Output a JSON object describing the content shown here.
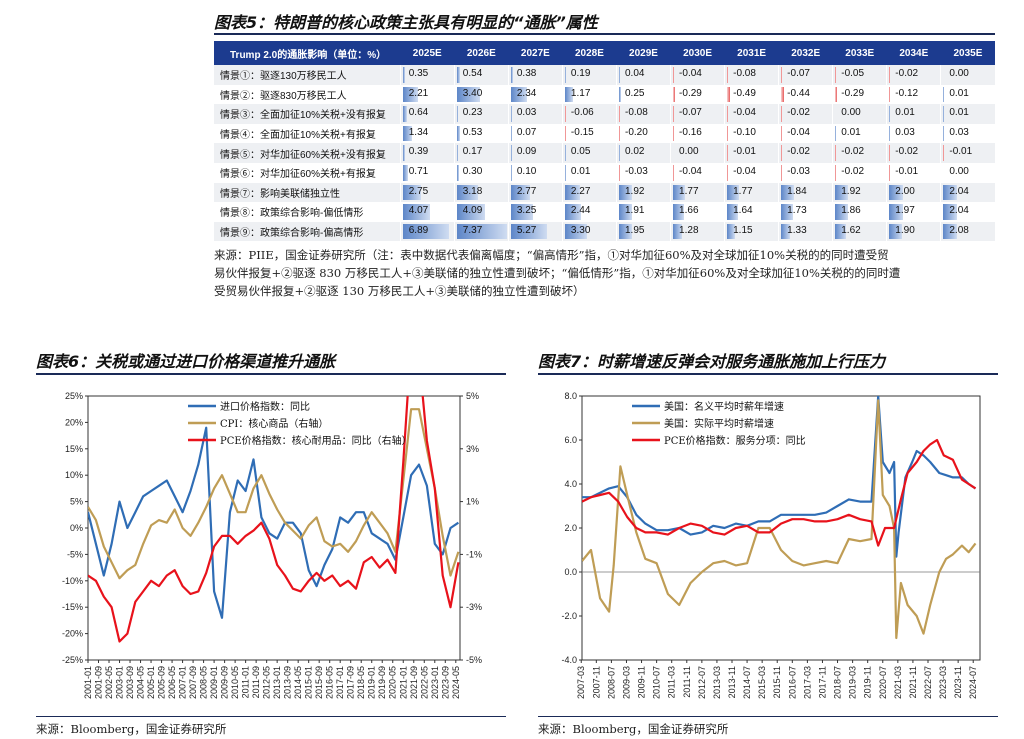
{
  "fig5": {
    "title": "图表5：特朗普的核心政策主张具有明显的“通胀”属性",
    "header": [
      "Trump 2.0的通胀影响（单位：%）",
      "2025E",
      "2026E",
      "2027E",
      "2028E",
      "2029E",
      "2030E",
      "2031E",
      "2032E",
      "2033E",
      "2034E",
      "2035E"
    ],
    "rows": [
      {
        "label": "情景①：驱逐130万移民工人",
        "values": [
          "0.35",
          "0.54",
          "0.38",
          "0.19",
          "0.04",
          "-0.04",
          "-0.08",
          "-0.07",
          "-0.05",
          "-0.02",
          "0.00"
        ]
      },
      {
        "label": "情景②：驱逐830万移民工人",
        "values": [
          "2.21",
          "3.40",
          "2.34",
          "1.17",
          "0.25",
          "-0.29",
          "-0.49",
          "-0.44",
          "-0.29",
          "-0.12",
          "0.01"
        ]
      },
      {
        "label": "情景③：全面加征10%关税+没有报复",
        "values": [
          "0.64",
          "0.23",
          "0.03",
          "-0.06",
          "-0.08",
          "-0.07",
          "-0.04",
          "-0.02",
          "0.00",
          "0.01",
          "0.01"
        ]
      },
      {
        "label": "情景④：全面加征10%关税+有报复",
        "values": [
          "1.34",
          "0.53",
          "0.07",
          "-0.15",
          "-0.20",
          "-0.16",
          "-0.10",
          "-0.04",
          "0.01",
          "0.03",
          "0.03"
        ]
      },
      {
        "label": "情景⑤：对华加征60%关税+没有报复",
        "values": [
          "0.39",
          "0.17",
          "0.09",
          "0.05",
          "0.02",
          "0.00",
          "-0.01",
          "-0.02",
          "-0.02",
          "-0.02",
          "-0.01"
        ]
      },
      {
        "label": "情景⑥：对华加征60%关税+有报复",
        "values": [
          "0.71",
          "0.30",
          "0.10",
          "0.01",
          "-0.03",
          "-0.04",
          "-0.04",
          "-0.03",
          "-0.02",
          "-0.01",
          "0.00"
        ]
      },
      {
        "label": "情景⑦：影响美联储独立性",
        "values": [
          "2.75",
          "3.18",
          "2.77",
          "2.27",
          "1.92",
          "1.77",
          "1.77",
          "1.84",
          "1.92",
          "2.00",
          "2.04"
        ]
      },
      {
        "label": "情景⑧：政策综合影响-偏低情形",
        "values": [
          "4.07",
          "4.09",
          "3.25",
          "2.44",
          "1.91",
          "1.66",
          "1.64",
          "1.73",
          "1.86",
          "1.97",
          "2.04"
        ]
      },
      {
        "label": "情景⑨：政策综合影响-偏高情形",
        "values": [
          "6.89",
          "7.37",
          "5.27",
          "3.30",
          "1.95",
          "1.28",
          "1.15",
          "1.33",
          "1.62",
          "1.90",
          "2.08"
        ]
      }
    ],
    "source_lines": [
      "来源：PIIE，国金证券研究所（注：表中数据代表偏离幅度；“偏高情形”指，①对华加征60%及对全球加征10%关税的的同时遭受贸",
      "易伙伴报复+②驱逐 830 万移民工人+③美联储的独立性遭到破坏；“偏低情形”指，①对华加征60%及对全球加征10%关税的的同时遭",
      "受贸易伙伴报复+②驱逐 130 万移民工人+③美联储的独立性遭到破坏）"
    ]
  },
  "fig6": {
    "title": "图表6：关税或通过进口价格渠道推升通胀",
    "source": "来源：Bloomberg，国金证券研究所"
  },
  "fig7": {
    "title": "图表7：时薪增速反弹会对服务通胀施加上行压力",
    "source": "来源：Bloomberg，国金证券研究所"
  },
  "chart_data": [
    {
      "type": "line",
      "xlabel": "",
      "ylabel": "",
      "x_ticks": [
        "2001-01",
        "2001-09",
        "2002-05",
        "2003-01",
        "2003-09",
        "2004-05",
        "2005-01",
        "2005-09",
        "2006-05",
        "2007-01",
        "2007-09",
        "2008-05",
        "2009-01",
        "2009-09",
        "2010-05",
        "2011-01",
        "2011-09",
        "2012-05",
        "2013-01",
        "2013-09",
        "2014-05",
        "2015-01",
        "2015-09",
        "2016-05",
        "2017-01",
        "2017-09",
        "2018-05",
        "2019-01",
        "2019-09",
        "2020-05",
        "2021-01",
        "2021-09",
        "2022-05",
        "2023-01",
        "2023-09",
        "2024-05"
      ],
      "y_left_ticks": [
        "25%",
        "20%",
        "15%",
        "10%",
        "5%",
        "0%",
        "-5%",
        "-10%",
        "-15%",
        "-20%",
        "-25%"
      ],
      "y_right_ticks": [
        "5%",
        "3%",
        "1%",
        "-1%",
        "-3%",
        "-5%"
      ],
      "ylim_left": [
        -25,
        25
      ],
      "ylim_right": [
        -5,
        5
      ],
      "legend_position": "top-left",
      "series": [
        {
          "name": "进口价格指数：同比",
          "axis": "left",
          "color": "#2f6db5",
          "x": [
            2001.0,
            2001.5,
            2002.0,
            2002.5,
            2003.0,
            2003.5,
            2004.0,
            2004.5,
            2005.0,
            2005.5,
            2006.0,
            2006.5,
            2007.0,
            2007.5,
            2008.0,
            2008.5,
            2009.0,
            2009.5,
            2010.0,
            2010.5,
            2011.0,
            2011.5,
            2012.0,
            2012.5,
            2013.0,
            2013.5,
            2014.0,
            2014.5,
            2015.0,
            2015.5,
            2016.0,
            2016.5,
            2017.0,
            2017.5,
            2018.0,
            2018.5,
            2019.0,
            2019.5,
            2020.0,
            2020.5,
            2021.0,
            2021.5,
            2022.0,
            2022.5,
            2023.0,
            2023.5,
            2024.0,
            2024.5
          ],
          "y": [
            3,
            -3,
            -9,
            -3,
            5,
            0,
            3,
            6,
            7,
            8,
            9,
            6,
            3,
            7,
            12,
            19,
            -12,
            -17,
            3,
            9,
            7,
            13,
            2,
            -1,
            -2,
            1,
            1,
            -1,
            -8,
            -11,
            -7,
            -4,
            2,
            1,
            3,
            3,
            -1,
            -2,
            -3,
            -6,
            2,
            10,
            12,
            8,
            -3,
            -5,
            0,
            1
          ]
        },
        {
          "name": "CPI：核心商品（右轴）",
          "axis": "right",
          "color": "#bf9d55",
          "x": [
            2001.0,
            2001.5,
            2002.0,
            2002.5,
            2003.0,
            2003.5,
            2004.0,
            2004.5,
            2005.0,
            2005.5,
            2006.0,
            2006.5,
            2007.0,
            2007.5,
            2008.0,
            2008.5,
            2009.0,
            2009.5,
            2010.0,
            2010.5,
            2011.0,
            2011.5,
            2012.0,
            2012.5,
            2013.0,
            2013.5,
            2014.0,
            2014.5,
            2015.0,
            2015.5,
            2016.0,
            2016.5,
            2017.0,
            2017.5,
            2018.0,
            2018.5,
            2019.0,
            2019.5,
            2020.0,
            2020.5,
            2021.0,
            2021.5,
            2022.0,
            2022.5,
            2023.0,
            2023.5,
            2024.0,
            2024.5
          ],
          "y": [
            0.8,
            0.3,
            -0.7,
            -1.3,
            -1.9,
            -1.6,
            -1.4,
            -0.6,
            0.1,
            0.3,
            0.2,
            0.7,
            0.0,
            -0.3,
            0.2,
            0.8,
            1.5,
            2.0,
            1.3,
            0.6,
            0.6,
            1.5,
            2.0,
            1.3,
            0.7,
            0.2,
            -0.1,
            -0.4,
            0.1,
            0.4,
            -0.5,
            -0.7,
            -0.6,
            -0.9,
            -0.5,
            0.1,
            0.6,
            0.2,
            -0.2,
            -0.9,
            1.8,
            4.5,
            4.5,
            3.0,
            1.5,
            -0.3,
            -1.8,
            -0.9
          ]
        },
        {
          "name": "PCE价格指数：核心耐用品：同比（右轴）",
          "axis": "right",
          "color": "#e8121b",
          "x": [
            2001.0,
            2001.5,
            2002.0,
            2002.5,
            2003.0,
            2003.5,
            2004.0,
            2004.5,
            2005.0,
            2005.5,
            2006.0,
            2006.5,
            2007.0,
            2007.5,
            2008.0,
            2008.5,
            2009.0,
            2009.5,
            2010.0,
            2010.5,
            2011.0,
            2011.5,
            2012.0,
            2012.5,
            2013.0,
            2013.5,
            2014.0,
            2014.5,
            2015.0,
            2015.5,
            2016.0,
            2016.5,
            2017.0,
            2017.5,
            2018.0,
            2018.5,
            2019.0,
            2019.5,
            2020.0,
            2020.5,
            2021.0,
            2021.5,
            2022.0,
            2022.5,
            2023.0,
            2023.5,
            2024.0,
            2024.5
          ],
          "y": [
            -1.8,
            -2.0,
            -2.6,
            -3.0,
            -4.3,
            -4.0,
            -2.8,
            -2.4,
            -2.0,
            -2.2,
            -1.8,
            -1.6,
            -2.2,
            -2.5,
            -2.4,
            -1.7,
            -0.7,
            -0.3,
            -0.3,
            -0.6,
            -0.3,
            -0.1,
            0.2,
            -0.4,
            -1.4,
            -1.8,
            -2.3,
            -2.4,
            -2.0,
            -1.7,
            -2.0,
            -1.8,
            -2.2,
            -2.0,
            -2.3,
            -1.3,
            -1.1,
            -1.5,
            -1.2,
            -1.7,
            2.5,
            7.0,
            6.5,
            3.3,
            1.5,
            -1.8,
            -3.0,
            -1.3
          ]
        }
      ]
    },
    {
      "type": "line",
      "xlabel": "",
      "ylabel": "",
      "x_ticks": [
        "2007-03",
        "2007-11",
        "2008-07",
        "2009-03",
        "2009-11",
        "2010-07",
        "2011-03",
        "2011-11",
        "2012-07",
        "2013-03",
        "2013-11",
        "2014-07",
        "2015-03",
        "2015-11",
        "2016-07",
        "2017-03",
        "2017-11",
        "2018-07",
        "2019-03",
        "2019-11",
        "2020-07",
        "2021-03",
        "2021-11",
        "2022-07",
        "2023-03",
        "2023-11",
        "2024-07"
      ],
      "y_ticks": [
        "8.0",
        "6.0",
        "4.0",
        "2.0",
        "0.0",
        "-2.0",
        "-4.0"
      ],
      "ylim": [
        -4,
        8
      ],
      "legend_position": "top-left",
      "series": [
        {
          "name": "美国：名义平均时薪年增速",
          "color": "#2f6db5",
          "x": [
            2007.2,
            2007.6,
            2008.0,
            2008.4,
            2008.8,
            2009.2,
            2009.6,
            2010.0,
            2010.5,
            2011.0,
            2011.5,
            2012.0,
            2012.5,
            2013.0,
            2013.5,
            2014.0,
            2014.5,
            2015.0,
            2015.5,
            2016.0,
            2016.5,
            2017.0,
            2017.5,
            2018.0,
            2018.5,
            2019.0,
            2019.5,
            2020.0,
            2020.3,
            2020.5,
            2020.8,
            2021.0,
            2021.1,
            2021.2,
            2021.5,
            2021.8,
            2022.0,
            2022.3,
            2022.6,
            2023.0,
            2023.3,
            2023.6,
            2024.0,
            2024.3,
            2024.6
          ],
          "y": [
            3.4,
            3.4,
            3.6,
            3.8,
            3.9,
            3.4,
            2.6,
            2.2,
            1.9,
            1.9,
            2.0,
            1.7,
            1.8,
            2.1,
            2.0,
            2.2,
            2.1,
            2.3,
            2.3,
            2.6,
            2.6,
            2.6,
            2.6,
            2.7,
            3.0,
            3.3,
            3.2,
            3.2,
            8.0,
            5.0,
            4.5,
            5.0,
            0.7,
            1.8,
            4.3,
            5.0,
            5.5,
            5.3,
            5.0,
            4.5,
            4.4,
            4.3,
            4.3,
            4.0,
            3.8
          ]
        },
        {
          "name": "美国：实际平均时薪增速",
          "color": "#bf9d55",
          "x": [
            2007.2,
            2007.6,
            2008.0,
            2008.4,
            2008.6,
            2008.9,
            2009.2,
            2009.6,
            2010.0,
            2010.5,
            2011.0,
            2011.5,
            2012.0,
            2012.5,
            2013.0,
            2013.5,
            2014.0,
            2014.5,
            2015.0,
            2015.5,
            2016.0,
            2016.5,
            2017.0,
            2017.5,
            2018.0,
            2018.5,
            2019.0,
            2019.5,
            2020.0,
            2020.3,
            2020.5,
            2020.8,
            2021.0,
            2021.1,
            2021.3,
            2021.6,
            2022.0,
            2022.3,
            2022.6,
            2023.0,
            2023.3,
            2023.6,
            2024.0,
            2024.3,
            2024.6
          ],
          "y": [
            0.5,
            1.0,
            -1.2,
            -1.8,
            0.3,
            4.8,
            3.5,
            1.8,
            0.6,
            0.4,
            -1.0,
            -1.5,
            -0.5,
            0.0,
            0.4,
            0.5,
            0.3,
            0.4,
            2.0,
            2.0,
            1.0,
            0.5,
            0.3,
            0.4,
            0.5,
            0.4,
            1.5,
            1.4,
            1.5,
            7.8,
            3.5,
            3.0,
            2.0,
            -3.0,
            -0.5,
            -1.5,
            -2.0,
            -2.8,
            -1.5,
            0.0,
            0.6,
            0.8,
            1.2,
            0.9,
            1.3
          ]
        },
        {
          "name": "PCE价格指数：服务分项：同比",
          "color": "#e8121b",
          "x": [
            2007.2,
            2007.6,
            2008.0,
            2008.4,
            2008.8,
            2009.2,
            2009.6,
            2010.0,
            2010.5,
            2011.0,
            2011.5,
            2012.0,
            2012.5,
            2013.0,
            2013.5,
            2014.0,
            2014.5,
            2015.0,
            2015.5,
            2016.0,
            2016.5,
            2017.0,
            2017.5,
            2018.0,
            2018.5,
            2019.0,
            2019.5,
            2020.0,
            2020.3,
            2020.6,
            2021.0,
            2021.3,
            2021.6,
            2022.0,
            2022.3,
            2022.6,
            2022.9,
            2023.2,
            2023.6,
            2024.0,
            2024.3,
            2024.6
          ],
          "y": [
            3.2,
            3.4,
            3.5,
            3.6,
            3.2,
            2.5,
            2.0,
            1.8,
            1.8,
            1.7,
            2.0,
            2.2,
            2.1,
            1.8,
            1.7,
            2.0,
            2.1,
            1.8,
            1.8,
            2.2,
            2.4,
            2.4,
            2.3,
            2.3,
            2.4,
            2.6,
            2.4,
            2.3,
            1.2,
            2.0,
            2.0,
            3.3,
            4.5,
            5.0,
            5.5,
            5.8,
            6.0,
            5.3,
            5.1,
            4.2,
            4.0,
            3.8
          ]
        }
      ]
    }
  ]
}
